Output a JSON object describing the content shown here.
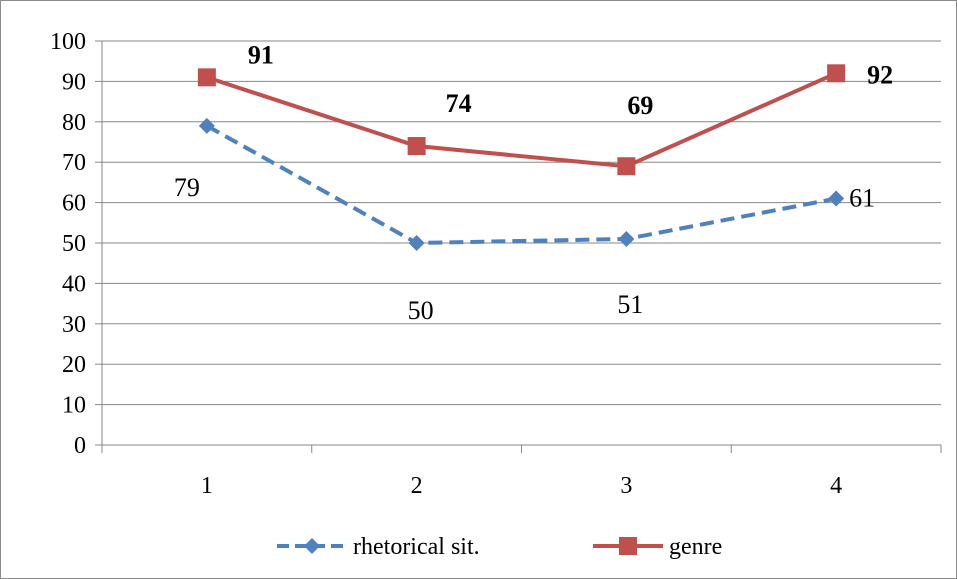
{
  "chart_data": {
    "type": "line",
    "categories": [
      "1",
      "2",
      "3",
      "4"
    ],
    "ylim": [
      0,
      100
    ],
    "yticks": [
      "0",
      "10",
      "20",
      "30",
      "40",
      "50",
      "60",
      "70",
      "80",
      "90",
      "100"
    ],
    "grid": "horizontal",
    "legend_position": "bottom",
    "series": [
      {
        "name": "rhetorical sit.",
        "values": [
          79,
          50,
          51,
          61
        ],
        "labels": [
          "79",
          "50",
          "51",
          "61"
        ],
        "color": "#4f81bd",
        "line_style": "dashed",
        "marker": "diamond",
        "label_bold": false
      },
      {
        "name": "genre",
        "values": [
          91,
          74,
          69,
          92
        ],
        "labels": [
          "91",
          "74",
          "69",
          "92"
        ],
        "color": "#c0504d",
        "line_style": "solid",
        "marker": "square",
        "label_bold": true
      }
    ]
  }
}
